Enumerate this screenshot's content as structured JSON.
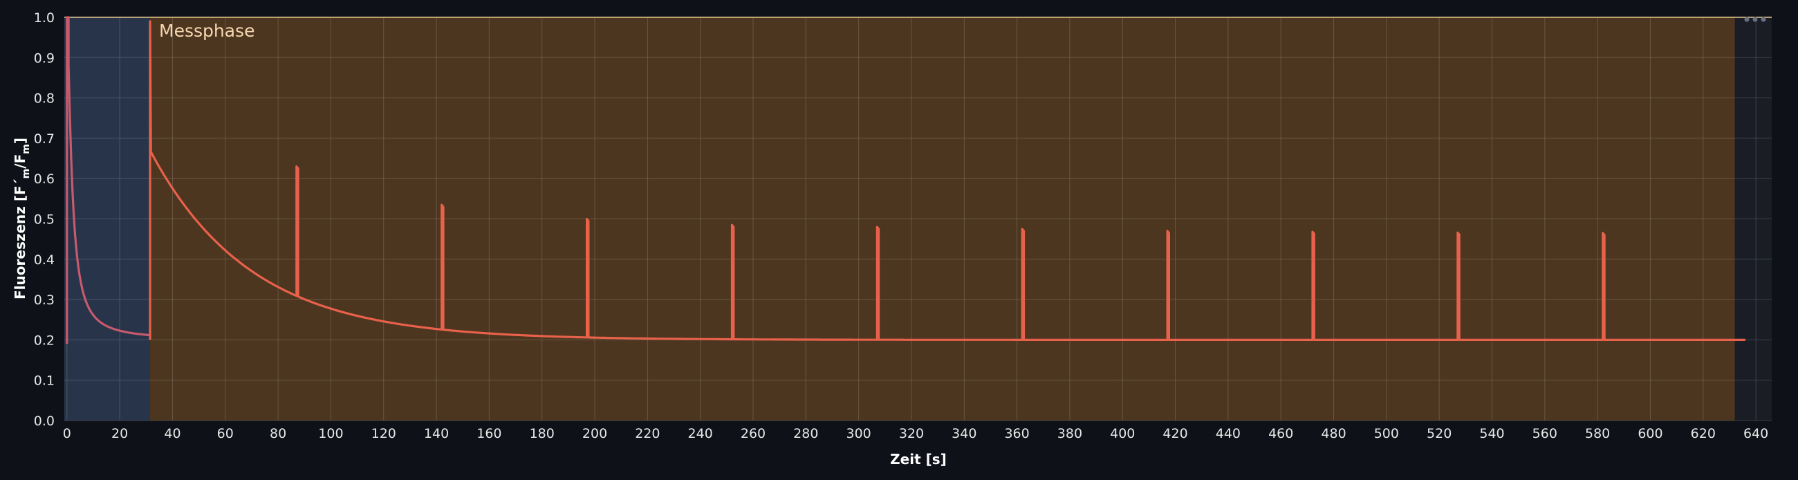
{
  "chart_data": {
    "type": "line",
    "xlabel": "Zeit [s]",
    "ylabel": "Fluoreszenz [F´m/Fm]",
    "ylabel_parts": {
      "main": "Fluoreszenz [F´",
      "sub1": "m",
      "mid": "/F",
      "sub2": "m",
      "end": "]"
    },
    "xlim": [
      -1,
      646
    ],
    "ylim": [
      0,
      1
    ],
    "xticks": [
      0,
      20,
      40,
      60,
      80,
      100,
      120,
      140,
      160,
      180,
      200,
      220,
      240,
      260,
      280,
      300,
      320,
      340,
      360,
      380,
      400,
      420,
      440,
      460,
      480,
      500,
      520,
      540,
      560,
      580,
      600,
      620,
      640
    ],
    "yticks": [
      0.0,
      0.1,
      0.2,
      0.3,
      0.4,
      0.5,
      0.6,
      0.7,
      0.8,
      0.9,
      1.0
    ],
    "ytick_labels": [
      "0.0",
      "0.1",
      "0.2",
      "0.3",
      "0.4",
      "0.5",
      "0.6",
      "0.7",
      "0.8",
      "0.9",
      "1.0"
    ],
    "grid": true,
    "phases": [
      {
        "label": "",
        "x_start": -1,
        "x_end": 31.5,
        "color": "#283449"
      },
      {
        "label": "Messphase",
        "x_start": 31.5,
        "x_end": 632,
        "color": "#4d3620"
      }
    ],
    "series": [
      {
        "color": "#e8614a",
        "baseline": {
          "start": 0.67,
          "end": 0.2,
          "tau": 38
        },
        "pulses": [
          {
            "x": 31.5,
            "peak": 0.99
          },
          {
            "x": 87,
            "peak": 0.63
          },
          {
            "x": 142,
            "peak": 0.535
          },
          {
            "x": 197,
            "peak": 0.5
          },
          {
            "x": 252,
            "peak": 0.485
          },
          {
            "x": 307,
            "peak": 0.48
          },
          {
            "x": 362,
            "peak": 0.475
          },
          {
            "x": 417,
            "peak": 0.47
          },
          {
            "x": 472,
            "peak": 0.468
          },
          {
            "x": 527,
            "peak": 0.466
          },
          {
            "x": 582,
            "peak": 0.465
          }
        ],
        "x_end": 636
      },
      {
        "color": "#c85a6e",
        "initial_decay": {
          "x_start": 0,
          "x_end": 31.5,
          "peak": 1.0,
          "end": 0.2
        }
      }
    ]
  },
  "colors": {
    "background": "#0e1117",
    "plot_outside": "#1a1d25",
    "line": "#e8614a",
    "early_line": "#c85a6e",
    "top_line": "#e8c98e"
  },
  "icons": {
    "menu": "more-horizontal-icon"
  }
}
